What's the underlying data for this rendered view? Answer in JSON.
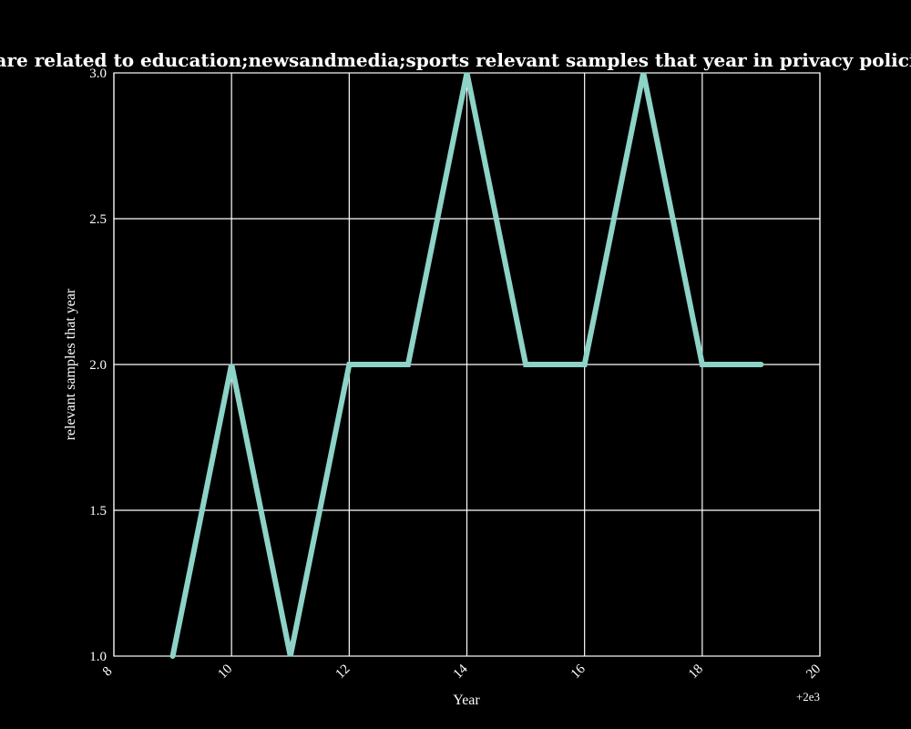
{
  "chart_data": {
    "type": "line",
    "title": "n categories are related to education;newsandmedia;sports relevant samples that year in privacy policies b",
    "xlabel": "Year",
    "ylabel": "relevant samples that year",
    "x_offset_label": "+2e3",
    "xlim": [
      8,
      20
    ],
    "ylim": [
      1.0,
      3.0
    ],
    "x_ticks": [
      "8",
      "10",
      "12",
      "14",
      "16",
      "18",
      "20"
    ],
    "y_ticks": [
      "1.0",
      "1.5",
      "2.0",
      "2.5",
      "3.0"
    ],
    "grid": true,
    "series": [
      {
        "x": [
          2009,
          2010,
          2011,
          2012,
          2013,
          2014,
          2015,
          2016,
          2017,
          2018,
          2019
        ],
        "values": [
          1,
          2,
          1,
          2,
          2,
          3,
          2,
          2,
          3,
          2,
          2
        ],
        "color": "#8dd3c7"
      }
    ]
  }
}
